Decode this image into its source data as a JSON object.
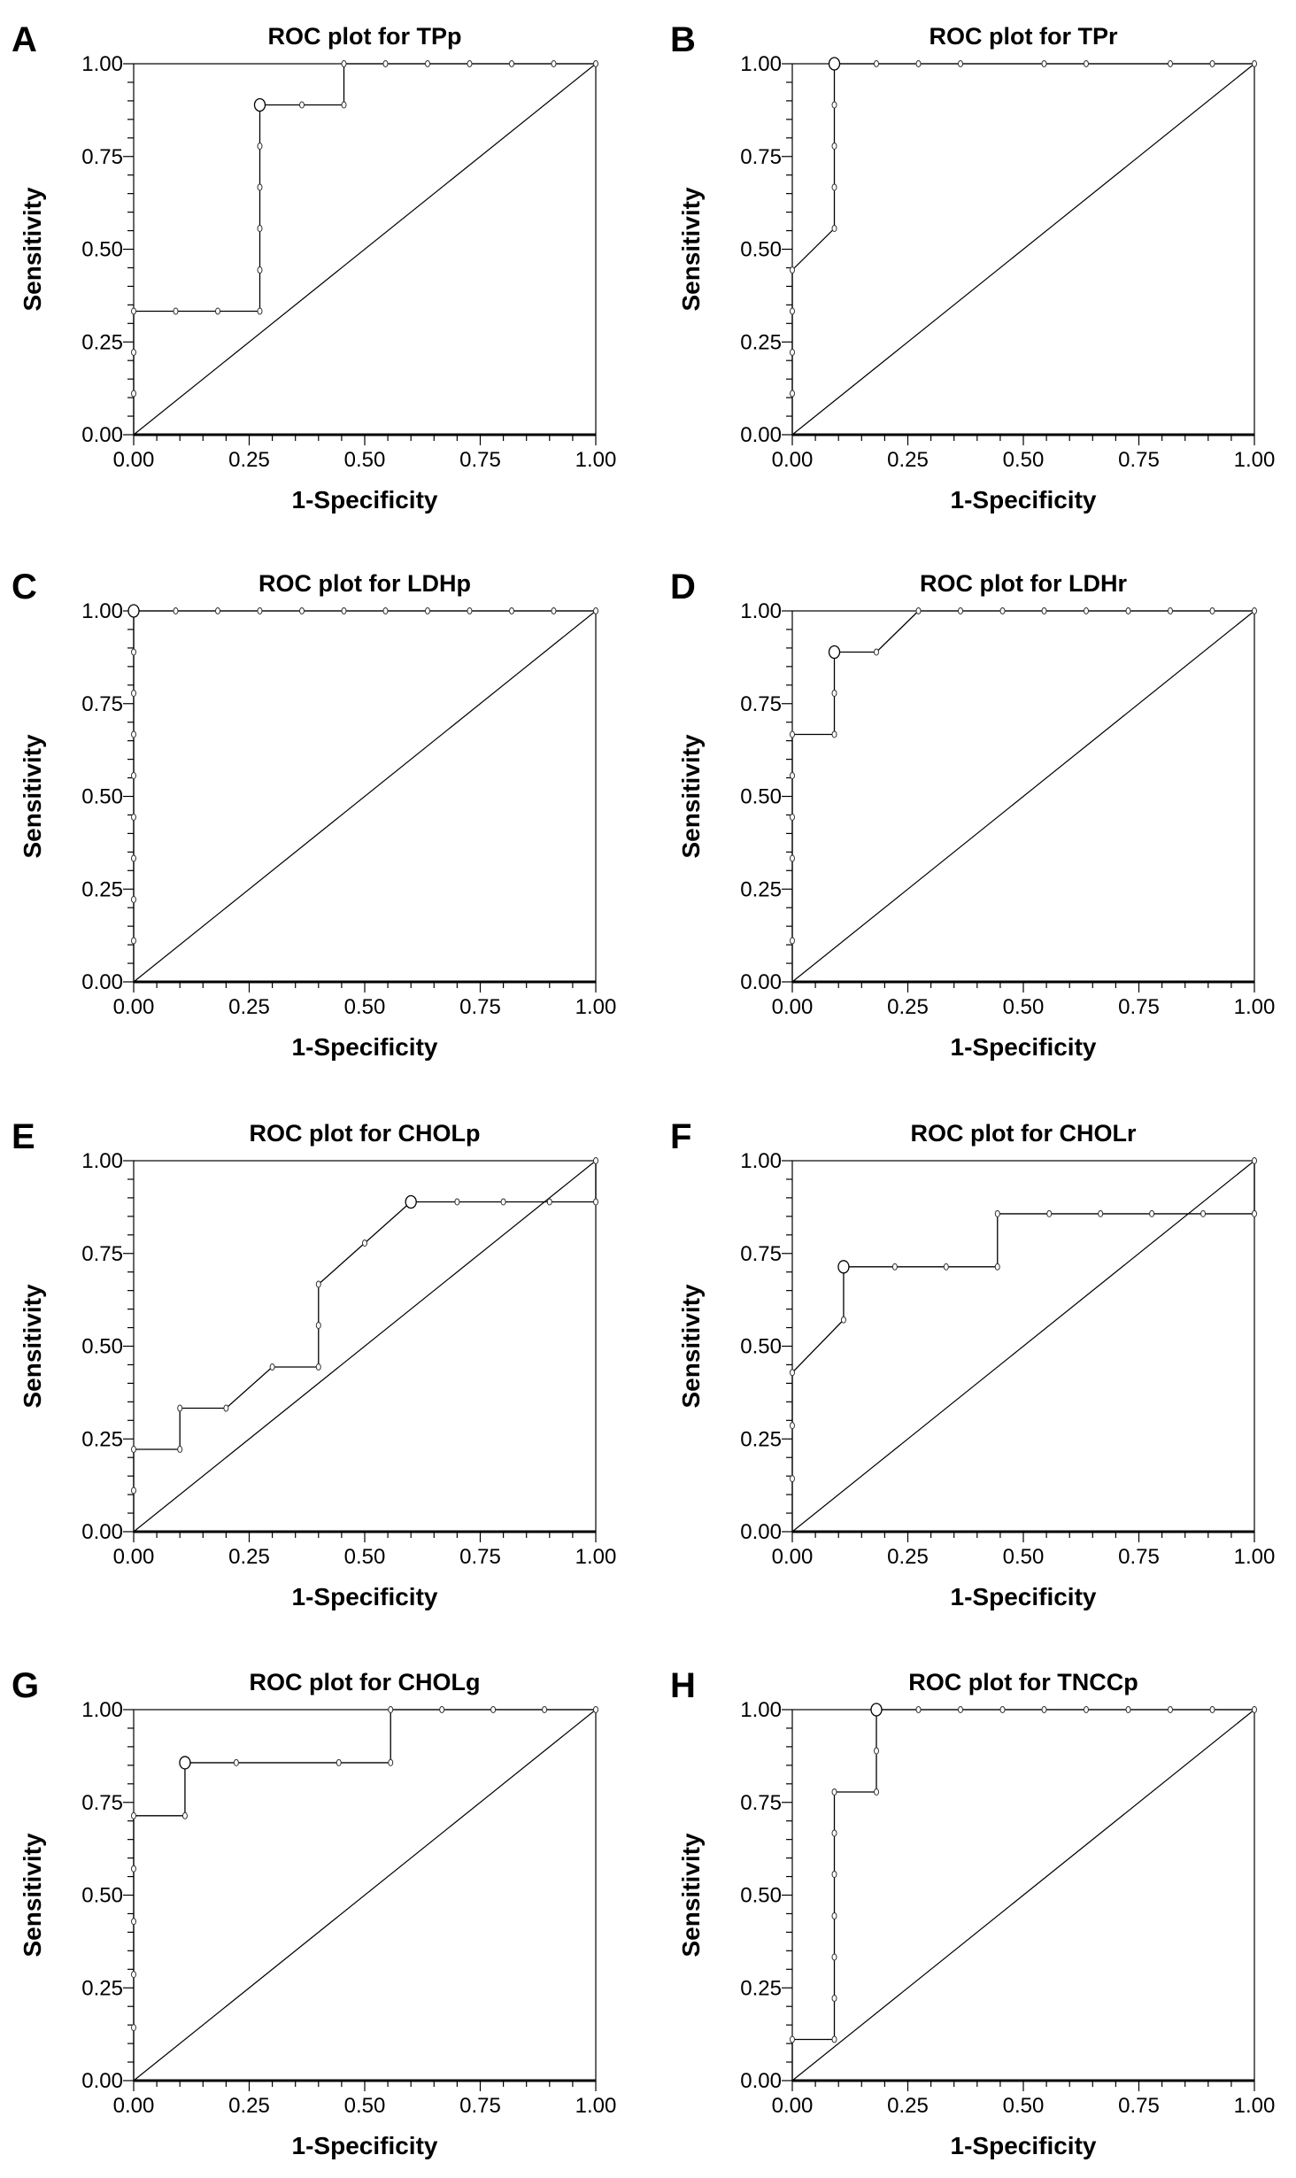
{
  "chart_data": [
    {
      "type": "line",
      "panel": "A",
      "title": "ROC plot for TPp",
      "xlabel": "1-Specificity",
      "ylabel": "Sensitivity",
      "xlim": [
        0,
        1
      ],
      "ylim": [
        0,
        1
      ],
      "xticks": [
        "0.00",
        "0.25",
        "0.50",
        "0.75",
        "1.00"
      ],
      "yticks": [
        "0.00",
        "0.25",
        "0.50",
        "0.75",
        "1.00"
      ],
      "points": [
        [
          0,
          0.111
        ],
        [
          0,
          0.222
        ],
        [
          0,
          0.333
        ],
        [
          0.091,
          0.333
        ],
        [
          0.182,
          0.333
        ],
        [
          0.273,
          0.333
        ],
        [
          0.273,
          0.444
        ],
        [
          0.273,
          0.556
        ],
        [
          0.273,
          0.667
        ],
        [
          0.273,
          0.778
        ],
        [
          0.273,
          0.889
        ],
        [
          0.364,
          0.889
        ],
        [
          0.455,
          0.889
        ],
        [
          0.455,
          1
        ],
        [
          0.545,
          1
        ],
        [
          0.636,
          1
        ],
        [
          0.727,
          1
        ],
        [
          0.818,
          1
        ],
        [
          0.909,
          1
        ],
        [
          1,
          1
        ]
      ],
      "optimal": [
        0.273,
        0.889
      ]
    },
    {
      "type": "line",
      "panel": "B",
      "title": "ROC plot for TPr",
      "xlabel": "1-Specificity",
      "ylabel": "Sensitivity",
      "xlim": [
        0,
        1
      ],
      "ylim": [
        0,
        1
      ],
      "xticks": [
        "0.00",
        "0.25",
        "0.50",
        "0.75",
        "1.00"
      ],
      "yticks": [
        "0.00",
        "0.25",
        "0.50",
        "0.75",
        "1.00"
      ],
      "points": [
        [
          0,
          0.111
        ],
        [
          0,
          0.222
        ],
        [
          0,
          0.333
        ],
        [
          0,
          0.444
        ],
        [
          0.091,
          0.556
        ],
        [
          0.091,
          0.667
        ],
        [
          0.091,
          0.778
        ],
        [
          0.091,
          0.889
        ],
        [
          0.091,
          1
        ],
        [
          0.182,
          1
        ],
        [
          0.273,
          1
        ],
        [
          0.364,
          1
        ],
        [
          0.545,
          1
        ],
        [
          0.636,
          1
        ],
        [
          0.818,
          1
        ],
        [
          0.909,
          1
        ],
        [
          1,
          1
        ]
      ],
      "optimal": [
        0.091,
        1
      ]
    },
    {
      "type": "line",
      "panel": "C",
      "title": "ROC plot for LDHp",
      "xlabel": "1-Specificity",
      "ylabel": "Sensitivity",
      "xlim": [
        0,
        1
      ],
      "ylim": [
        0,
        1
      ],
      "xticks": [
        "0.00",
        "0.25",
        "0.50",
        "0.75",
        "1.00"
      ],
      "yticks": [
        "0.00",
        "0.25",
        "0.50",
        "0.75",
        "1.00"
      ],
      "points": [
        [
          0,
          0.111
        ],
        [
          0,
          0.222
        ],
        [
          0,
          0.333
        ],
        [
          0,
          0.444
        ],
        [
          0,
          0.556
        ],
        [
          0,
          0.667
        ],
        [
          0,
          0.778
        ],
        [
          0,
          0.889
        ],
        [
          0,
          1
        ],
        [
          0.091,
          1
        ],
        [
          0.182,
          1
        ],
        [
          0.273,
          1
        ],
        [
          0.364,
          1
        ],
        [
          0.455,
          1
        ],
        [
          0.545,
          1
        ],
        [
          0.636,
          1
        ],
        [
          0.727,
          1
        ],
        [
          0.818,
          1
        ],
        [
          0.909,
          1
        ],
        [
          1,
          1
        ]
      ],
      "optimal": [
        0,
        1
      ]
    },
    {
      "type": "line",
      "panel": "D",
      "title": "ROC plot for LDHr",
      "xlabel": "1-Specificity",
      "ylabel": "Sensitivity",
      "xlim": [
        0,
        1
      ],
      "ylim": [
        0,
        1
      ],
      "xticks": [
        "0.00",
        "0.25",
        "0.50",
        "0.75",
        "1.00"
      ],
      "yticks": [
        "0.00",
        "0.25",
        "0.50",
        "0.75",
        "1.00"
      ],
      "points": [
        [
          0,
          0.111
        ],
        [
          0,
          0.333
        ],
        [
          0,
          0.444
        ],
        [
          0,
          0.556
        ],
        [
          0,
          0.667
        ],
        [
          0.091,
          0.667
        ],
        [
          0.091,
          0.778
        ],
        [
          0.091,
          0.889
        ],
        [
          0.182,
          0.889
        ],
        [
          0.273,
          1
        ],
        [
          0.364,
          1
        ],
        [
          0.455,
          1
        ],
        [
          0.545,
          1
        ],
        [
          0.636,
          1
        ],
        [
          0.727,
          1
        ],
        [
          0.818,
          1
        ],
        [
          0.909,
          1
        ],
        [
          1,
          1
        ]
      ],
      "optimal": [
        0.091,
        0.889
      ]
    },
    {
      "type": "line",
      "panel": "E",
      "title": "ROC plot for CHOLp",
      "xlabel": "1-Specificity",
      "ylabel": "Sensitivity",
      "xlim": [
        0,
        1
      ],
      "ylim": [
        0,
        1
      ],
      "xticks": [
        "0.00",
        "0.25",
        "0.50",
        "0.75",
        "1.00"
      ],
      "yticks": [
        "0.00",
        "0.25",
        "0.50",
        "0.75",
        "1.00"
      ],
      "points": [
        [
          0,
          0.111
        ],
        [
          0,
          0.222
        ],
        [
          0.1,
          0.222
        ],
        [
          0.1,
          0.333
        ],
        [
          0.2,
          0.333
        ],
        [
          0.3,
          0.444
        ],
        [
          0.4,
          0.444
        ],
        [
          0.4,
          0.556
        ],
        [
          0.4,
          0.667
        ],
        [
          0.5,
          0.778
        ],
        [
          0.6,
          0.889
        ],
        [
          0.7,
          0.889
        ],
        [
          0.8,
          0.889
        ],
        [
          0.9,
          0.889
        ],
        [
          1,
          0.889
        ],
        [
          1,
          1
        ]
      ],
      "optimal": [
        0.6,
        0.889
      ]
    },
    {
      "type": "line",
      "panel": "F",
      "title": "ROC plot for CHOLr",
      "xlabel": "1-Specificity",
      "ylabel": "Sensitivity",
      "xlim": [
        0,
        1
      ],
      "ylim": [
        0,
        1
      ],
      "xticks": [
        "0.00",
        "0.25",
        "0.50",
        "0.75",
        "1.00"
      ],
      "yticks": [
        "0.00",
        "0.25",
        "0.50",
        "0.75",
        "1.00"
      ],
      "points": [
        [
          0,
          0.143
        ],
        [
          0,
          0.286
        ],
        [
          0,
          0.429
        ],
        [
          0.111,
          0.571
        ],
        [
          0.111,
          0.714
        ],
        [
          0.222,
          0.714
        ],
        [
          0.333,
          0.714
        ],
        [
          0.444,
          0.714
        ],
        [
          0.444,
          0.857
        ],
        [
          0.556,
          0.857
        ],
        [
          0.667,
          0.857
        ],
        [
          0.778,
          0.857
        ],
        [
          0.889,
          0.857
        ],
        [
          1,
          0.857
        ],
        [
          1,
          1
        ]
      ],
      "optimal": [
        0.111,
        0.714
      ]
    },
    {
      "type": "line",
      "panel": "G",
      "title": "ROC plot for CHOLg",
      "xlabel": "1-Specificity",
      "ylabel": "Sensitivity",
      "xlim": [
        0,
        1
      ],
      "ylim": [
        0,
        1
      ],
      "xticks": [
        "0.00",
        "0.25",
        "0.50",
        "0.75",
        "1.00"
      ],
      "yticks": [
        "0.00",
        "0.25",
        "0.50",
        "0.75",
        "1.00"
      ],
      "points": [
        [
          0,
          0.143
        ],
        [
          0,
          0.286
        ],
        [
          0,
          0.429
        ],
        [
          0,
          0.571
        ],
        [
          0,
          0.714
        ],
        [
          0.111,
          0.714
        ],
        [
          0.111,
          0.857
        ],
        [
          0.222,
          0.857
        ],
        [
          0.444,
          0.857
        ],
        [
          0.556,
          0.857
        ],
        [
          0.556,
          1
        ],
        [
          0.667,
          1
        ],
        [
          0.778,
          1
        ],
        [
          0.889,
          1
        ],
        [
          1,
          1
        ]
      ],
      "optimal": [
        0.111,
        0.857
      ]
    },
    {
      "type": "line",
      "panel": "H",
      "title": "ROC plot for TNCCp",
      "xlabel": "1-Specificity",
      "ylabel": "Sensitivity",
      "xlim": [
        0,
        1
      ],
      "ylim": [
        0,
        1
      ],
      "xticks": [
        "0.00",
        "0.25",
        "0.50",
        "0.75",
        "1.00"
      ],
      "yticks": [
        "0.00",
        "0.25",
        "0.50",
        "0.75",
        "1.00"
      ],
      "points": [
        [
          0,
          0.111
        ],
        [
          0.091,
          0.111
        ],
        [
          0.091,
          0.222
        ],
        [
          0.091,
          0.333
        ],
        [
          0.091,
          0.444
        ],
        [
          0.091,
          0.556
        ],
        [
          0.091,
          0.667
        ],
        [
          0.091,
          0.778
        ],
        [
          0.182,
          0.778
        ],
        [
          0.182,
          0.889
        ],
        [
          0.182,
          1
        ],
        [
          0.273,
          1
        ],
        [
          0.364,
          1
        ],
        [
          0.455,
          1
        ],
        [
          0.545,
          1
        ],
        [
          0.636,
          1
        ],
        [
          0.727,
          1
        ],
        [
          0.818,
          1
        ],
        [
          0.909,
          1
        ],
        [
          1,
          1
        ]
      ],
      "optimal": [
        0.182,
        1
      ]
    }
  ]
}
